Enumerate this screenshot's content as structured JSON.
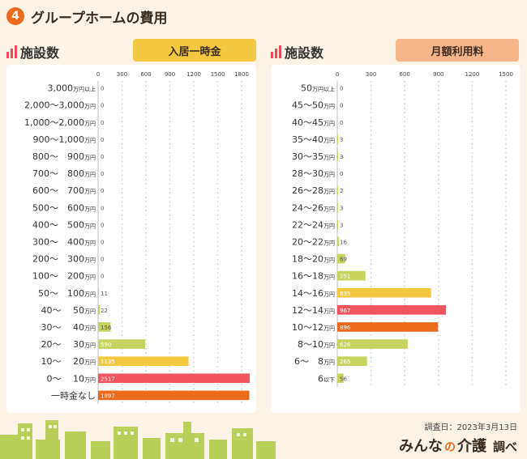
{
  "header": {
    "number": "4",
    "title": "グループホームの費用"
  },
  "footer": {
    "date": "調査日：2023年3月13日",
    "brand_a": "みんな",
    "brand_no": "の",
    "brand_b": "介護",
    "brand_sub": "調べ"
  },
  "colors": {
    "background": "#fbf3e6",
    "yellow": "#f5c842",
    "red": "#f0555f",
    "orange": "#ec6a1c",
    "green": "#c6d45e",
    "grid": "#c8c8c8"
  },
  "chart_data": [
    {
      "type": "bar",
      "orientation": "horizontal",
      "panel_title": "施設数",
      "title": "入居一時金",
      "ticks": [
        0,
        300,
        600,
        900,
        1200,
        1500,
        1800
      ],
      "xlim": [
        0,
        1800
      ],
      "grid": true,
      "categories": [
        {
          "main": "3,000",
          "unit": "万円以上"
        },
        {
          "main": "2,000〜3,000",
          "unit": "万円"
        },
        {
          "main": "1,000〜2,000",
          "unit": "万円"
        },
        {
          "main": "900〜1,000",
          "unit": "万円"
        },
        {
          "main": "800〜　900",
          "unit": "万円"
        },
        {
          "main": "700〜　800",
          "unit": "万円"
        },
        {
          "main": "600〜　700",
          "unit": "万円"
        },
        {
          "main": "500〜　600",
          "unit": "万円"
        },
        {
          "main": "400〜　500",
          "unit": "万円"
        },
        {
          "main": "300〜　400",
          "unit": "万円"
        },
        {
          "main": "200〜　300",
          "unit": "万円"
        },
        {
          "main": "100〜　200",
          "unit": "万円"
        },
        {
          "main": "50〜　100",
          "unit": "万円"
        },
        {
          "main": "40〜　 50",
          "unit": "万円"
        },
        {
          "main": "30〜　 40",
          "unit": "万円"
        },
        {
          "main": "20〜　 30",
          "unit": "万円"
        },
        {
          "main": "10〜　 20",
          "unit": "万円"
        },
        {
          "main": "0〜　 10",
          "unit": "万円"
        },
        {
          "main": "一時金なし",
          "unit": ""
        }
      ],
      "values": [
        0,
        0,
        0,
        0,
        0,
        0,
        0,
        0,
        0,
        0,
        0,
        0,
        11,
        22,
        156,
        590,
        1135,
        2517,
        1897
      ],
      "value_labels": [
        "0",
        "0",
        "0",
        "0",
        "0",
        "0",
        "0",
        "0",
        "0",
        "0",
        "0",
        "0",
        "11",
        "22",
        "156",
        "590",
        "1135",
        "2517",
        "1897"
      ],
      "bar_colors": [
        "#c6d45e",
        "#c6d45e",
        "#c6d45e",
        "#c6d45e",
        "#c6d45e",
        "#c6d45e",
        "#c6d45e",
        "#c6d45e",
        "#c6d45e",
        "#c6d45e",
        "#c6d45e",
        "#c6d45e",
        "#c6d45e",
        "#c6d45e",
        "#c6d45e",
        "#c6d45e",
        "#f5c842",
        "#f0555f",
        "#ec6a1c"
      ]
    },
    {
      "type": "bar",
      "orientation": "horizontal",
      "panel_title": "施設数",
      "title": "月額利用料",
      "ticks": [
        0,
        300,
        600,
        900,
        1200,
        1500
      ],
      "xlim": [
        0,
        1500
      ],
      "grid": true,
      "categories": [
        {
          "main": "50",
          "unit": "万円以上"
        },
        {
          "main": "45〜50",
          "unit": "万円"
        },
        {
          "main": "40〜45",
          "unit": "万円"
        },
        {
          "main": "35〜40",
          "unit": "万円"
        },
        {
          "main": "30〜35",
          "unit": "万円"
        },
        {
          "main": "28〜30",
          "unit": "万円"
        },
        {
          "main": "26〜28",
          "unit": "万円"
        },
        {
          "main": "24〜26",
          "unit": "万円"
        },
        {
          "main": "22〜24",
          "unit": "万円"
        },
        {
          "main": "20〜22",
          "unit": "万円"
        },
        {
          "main": "18〜20",
          "unit": "万円"
        },
        {
          "main": "16〜18",
          "unit": "万円"
        },
        {
          "main": "14〜16",
          "unit": "万円"
        },
        {
          "main": "12〜14",
          "unit": "万円"
        },
        {
          "main": "10〜12",
          "unit": "万円"
        },
        {
          "main": "8〜10",
          "unit": "万円"
        },
        {
          "main": "6〜　8",
          "unit": "万円"
        },
        {
          "main": "6",
          "unit": "以下"
        }
      ],
      "values": [
        0,
        0,
        0,
        3,
        3,
        0,
        2,
        3,
        3,
        16,
        69,
        251,
        835,
        967,
        896,
        626,
        265,
        56
      ],
      "value_labels": [
        "0",
        "0",
        "0",
        "3",
        "3",
        "0",
        "2",
        "3",
        "3",
        "16",
        "69",
        "251",
        "835",
        "967",
        "896",
        "626",
        "265",
        "56"
      ],
      "bar_colors": [
        "#c6d45e",
        "#c6d45e",
        "#c6d45e",
        "#c6d45e",
        "#c6d45e",
        "#c6d45e",
        "#c6d45e",
        "#c6d45e",
        "#c6d45e",
        "#c6d45e",
        "#c6d45e",
        "#c6d45e",
        "#f5c842",
        "#f0555f",
        "#ec6a1c",
        "#c6d45e",
        "#c6d45e",
        "#c6d45e"
      ]
    }
  ]
}
